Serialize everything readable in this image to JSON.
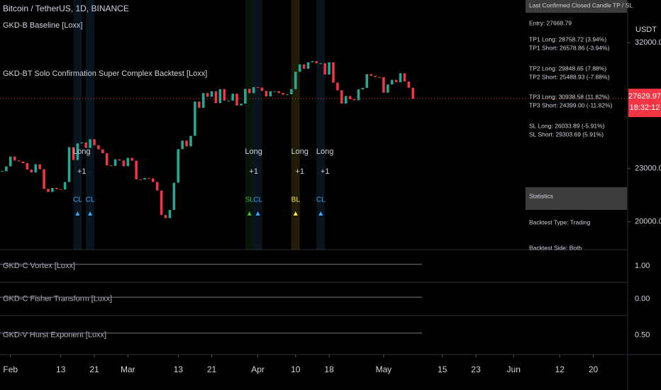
{
  "chart_data": {
    "type": "candlestick",
    "title": "Bitcoin / TetherUS, 1D, BINANCE",
    "indicators": [
      "GKD-B Baseline [Loxx]",
      "GKD-BT Solo Confirmation Super Complex Backtest [Loxx]"
    ],
    "currency": "USDT",
    "log_scale": true,
    "close": [
      22840,
      23130,
      23730,
      23490,
      23430,
      23330,
      22940,
      22760,
      23260,
      22960,
      21800,
      21630,
      21860,
      21790,
      21770,
      22200,
      24330,
      23520,
      24570,
      24630,
      24280,
      24840,
      24450,
      24190,
      23940,
      23190,
      23160,
      23560,
      23490,
      23140,
      23650,
      23480,
      22360,
      22350,
      22430,
      22410,
      22200,
      21710,
      20360,
      20190,
      20630,
      22160,
      24200,
      24750,
      24380,
      25060,
      27420,
      26970,
      28040,
      27770,
      28170,
      27310,
      28330,
      27490,
      27490,
      27990,
      27140,
      27270,
      28350,
      28030,
      28480,
      28450,
      28200,
      27790,
      28170,
      28180,
      28040,
      27920,
      27950,
      28330,
      29650,
      30230,
      29890,
      30400,
      30490,
      30320,
      30320,
      29440,
      30400,
      28820,
      28250,
      27280,
      27820,
      27590,
      27520,
      28310,
      28420,
      29470,
      29340,
      29250,
      29230,
      28070,
      28680,
      29030,
      28850,
      29540,
      28900,
      28430,
      27629.97
    ],
    "up_color": "#22ab94",
    "down_color": "#f23645",
    "ylim": [
      18660,
      35800
    ],
    "yticks": [
      {
        "value": 32000,
        "label": "32000.00"
      },
      {
        "value": 23000,
        "label": "23000.00"
      },
      {
        "value": 20000,
        "label": "20000.00"
      }
    ],
    "last_price": {
      "value": 27629.97,
      "label": "27629.97"
    },
    "countdown": "18:32:12",
    "xlim": [
      -0.5,
      149.2
    ],
    "xticks": [
      {
        "value": 2,
        "label": "Feb"
      },
      {
        "value": 14,
        "label": "13"
      },
      {
        "value": 22,
        "label": "21"
      },
      {
        "value": 30,
        "label": "Mar"
      },
      {
        "value": 42,
        "label": "13"
      },
      {
        "value": 50,
        "label": "21"
      },
      {
        "value": 61,
        "label": "Apr"
      },
      {
        "value": 70,
        "label": "10"
      },
      {
        "value": 78,
        "label": "18"
      },
      {
        "value": 91,
        "label": "May"
      },
      {
        "value": 105,
        "label": "15"
      },
      {
        "value": 113,
        "label": "23"
      },
      {
        "value": 122,
        "label": "Jun"
      },
      {
        "value": 133,
        "label": "12"
      },
      {
        "value": 141,
        "label": "20"
      }
    ],
    "signals": [
      {
        "x": 18,
        "text": "CL",
        "color": "#42a5f5"
      },
      {
        "x": 21,
        "text": "CL",
        "color": "#42a5f5"
      },
      {
        "x": 59,
        "text": "SL",
        "color": "#4caf50"
      },
      {
        "x": 61,
        "text": "CL",
        "color": "#42a5f5"
      },
      {
        "x": 70,
        "text": "BL",
        "color": "#ffeb3b"
      },
      {
        "x": 76,
        "text": "CL",
        "color": "#42a5f5"
      }
    ],
    "entries": [
      {
        "x": 19,
        "text": "Long",
        "sub": "+1"
      },
      {
        "x": 60,
        "text": "Long",
        "sub": "+1"
      },
      {
        "x": 71,
        "text": "Long",
        "sub": "+1"
      },
      {
        "x": 77,
        "text": "Long",
        "sub": "+1"
      }
    ],
    "panes": [
      {
        "name": "GKD-C Vortex [Loxx]",
        "tick": "1.00"
      },
      {
        "name": "GKD-C Fisher Transform [Loxx]",
        "tick": "0.00"
      },
      {
        "name": "GKD-V Hurst Exponent [Loxx]",
        "tick": "0.50"
      }
    ],
    "table": {
      "tp_sl": [
        "Last Confirmed Closed Candle TP / SL",
        "Entry: 27668.79",
        "TP1 Long: 28758.72 (3.94%)",
        "TP1 Short: 26578.86 (-3.94%)",
        "TP2 Long: 29848.65 (7.88%)",
        "TP2 Short: 25488.93 (-7.88%)",
        "TP3 Long: 30938.58 (11.82%)",
        "TP3 Short: 24399.00 (-11.82%)",
        "SL Long: 26033.89 (-5.91%)",
        "SL Short: 29303.69 (5.91%)"
      ],
      "stats": [
        "Statistics",
        "Backtest Type: Trading",
        "Backtest Side: Both"
      ]
    }
  }
}
